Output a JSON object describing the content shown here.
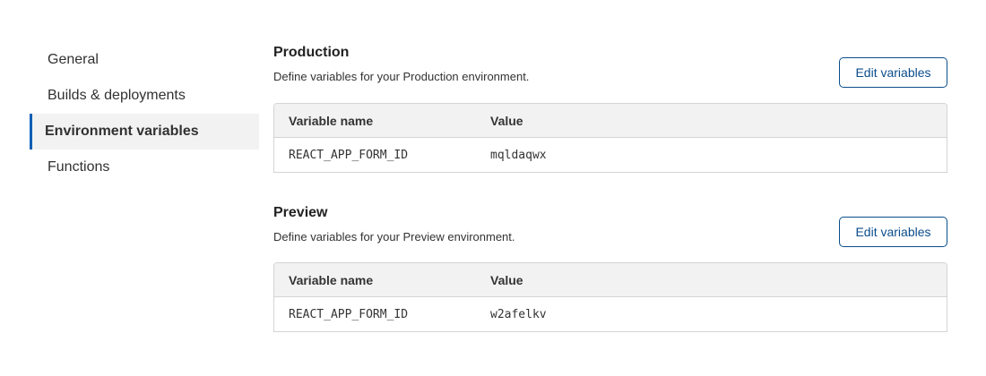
{
  "sidebar": {
    "items": [
      {
        "label": "General",
        "active": false
      },
      {
        "label": "Builds & deployments",
        "active": false
      },
      {
        "label": "Environment variables",
        "active": true
      },
      {
        "label": "Functions",
        "active": false
      }
    ]
  },
  "sections": [
    {
      "title": "Production",
      "description": "Define variables for your Production environment.",
      "button": "Edit variables",
      "columns": [
        "Variable name",
        "Value"
      ],
      "rows": [
        {
          "name": "REACT_APP_FORM_ID",
          "value": "mqldaqwx"
        }
      ]
    },
    {
      "title": "Preview",
      "description": "Define variables for your Preview environment.",
      "button": "Edit variables",
      "columns": [
        "Variable name",
        "Value"
      ],
      "rows": [
        {
          "name": "REACT_APP_FORM_ID",
          "value": "w2afelkv"
        }
      ]
    }
  ],
  "colors": {
    "accent": "#0a4d8c",
    "active_bar": "#0a5fb4",
    "header_bg": "#f2f2f2"
  }
}
